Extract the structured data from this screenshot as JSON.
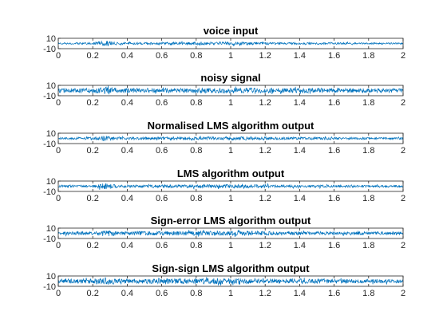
{
  "figure": {
    "background": "#ffffff",
    "axes_color": "#262626",
    "line_color": "#0072bd"
  },
  "chart_data": [
    {
      "type": "line",
      "title": "voice input",
      "xlim": [
        0,
        2
      ],
      "ylim": [
        -10,
        10
      ],
      "xticks": [
        "0",
        "0.2",
        "0.4",
        "0.6",
        "0.8",
        "1",
        "1.2",
        "1.4",
        "1.6",
        "1.8",
        "2"
      ],
      "yticks": [
        "-10",
        "10"
      ],
      "series": [
        {
          "x_range": [
            0,
            2
          ],
          "amplitude_envelope": [
            [
              0,
              1.5
            ],
            [
              0.2,
              2
            ],
            [
              0.28,
              6
            ],
            [
              0.35,
              2
            ],
            [
              0.6,
              2.5
            ],
            [
              0.9,
              3
            ],
            [
              1.1,
              3
            ],
            [
              1.3,
              2
            ],
            [
              1.6,
              2
            ],
            [
              1.8,
              1.5
            ],
            [
              2,
              1.5
            ]
          ]
        }
      ]
    },
    {
      "type": "line",
      "title": "noisy signal",
      "xlim": [
        0,
        2
      ],
      "ylim": [
        -10,
        10
      ],
      "xticks": [
        "0",
        "0.2",
        "0.4",
        "0.6",
        "0.8",
        "1",
        "1.2",
        "1.4",
        "1.6",
        "1.8",
        "2"
      ],
      "yticks": [
        "-10",
        "10"
      ],
      "series": [
        {
          "x_range": [
            0,
            2
          ],
          "amplitude_envelope": [
            [
              0,
              4
            ],
            [
              0.2,
              4.5
            ],
            [
              0.28,
              7
            ],
            [
              0.35,
              4.5
            ],
            [
              0.6,
              4.5
            ],
            [
              0.9,
              5
            ],
            [
              1.1,
              5
            ],
            [
              1.3,
              4.5
            ],
            [
              1.6,
              4.5
            ],
            [
              1.8,
              4
            ],
            [
              2,
              4
            ]
          ]
        }
      ]
    },
    {
      "type": "line",
      "title": "Normalised LMS algorithm output",
      "xlim": [
        0,
        2
      ],
      "ylim": [
        -10,
        10
      ],
      "xticks": [
        "0",
        "0.2",
        "0.4",
        "0.6",
        "0.8",
        "1",
        "1.2",
        "1.4",
        "1.6",
        "1.8",
        "2"
      ],
      "yticks": [
        "-10",
        "10"
      ],
      "series": [
        {
          "x_range": [
            0,
            2
          ],
          "amplitude_envelope": [
            [
              0,
              2
            ],
            [
              0.2,
              2.5
            ],
            [
              0.28,
              6
            ],
            [
              0.35,
              2.5
            ],
            [
              0.6,
              3
            ],
            [
              0.9,
              3.5
            ],
            [
              1.1,
              3.5
            ],
            [
              1.3,
              2.5
            ],
            [
              1.6,
              2.5
            ],
            [
              1.8,
              2
            ],
            [
              2,
              2
            ]
          ]
        }
      ]
    },
    {
      "type": "line",
      "title": "LMS algorithm output",
      "xlim": [
        0,
        2
      ],
      "ylim": [
        -10,
        10
      ],
      "xticks": [
        "0",
        "0.2",
        "0.4",
        "0.6",
        "0.8",
        "1",
        "1.2",
        "1.4",
        "1.6",
        "1.8",
        "2"
      ],
      "yticks": [
        "-10",
        "10"
      ],
      "series": [
        {
          "x_range": [
            0,
            2
          ],
          "amplitude_envelope": [
            [
              0,
              2
            ],
            [
              0.2,
              2.5
            ],
            [
              0.28,
              6
            ],
            [
              0.35,
              2.5
            ],
            [
              0.6,
              3
            ],
            [
              0.9,
              3.5
            ],
            [
              1.1,
              3.5
            ],
            [
              1.3,
              2.5
            ],
            [
              1.6,
              2.5
            ],
            [
              1.8,
              2
            ],
            [
              2,
              2
            ]
          ]
        }
      ]
    },
    {
      "type": "line",
      "title": "Sign-error LMS algorithm output",
      "xlim": [
        0,
        2
      ],
      "ylim": [
        -10,
        10
      ],
      "xticks": [
        "0",
        "0.2",
        "0.4",
        "0.6",
        "0.8",
        "1",
        "1.2",
        "1.4",
        "1.6",
        "1.8",
        "2"
      ],
      "yticks": [
        "-10",
        "10"
      ],
      "series": [
        {
          "x_range": [
            0,
            2
          ],
          "amplitude_envelope": [
            [
              0,
              3
            ],
            [
              0.2,
              3.5
            ],
            [
              0.28,
              6.5
            ],
            [
              0.35,
              3.5
            ],
            [
              0.6,
              4
            ],
            [
              0.9,
              4.5
            ],
            [
              1.1,
              4.5
            ],
            [
              1.3,
              3.5
            ],
            [
              1.6,
              3.5
            ],
            [
              1.8,
              3
            ],
            [
              2,
              3
            ]
          ]
        }
      ]
    },
    {
      "type": "line",
      "title": "Sign-sign LMS algorithm output",
      "xlim": [
        0,
        2
      ],
      "ylim": [
        -10,
        10
      ],
      "xticks": [
        "0",
        "0.2",
        "0.4",
        "0.6",
        "0.8",
        "1",
        "1.2",
        "1.4",
        "1.6",
        "1.8",
        "2"
      ],
      "yticks": [
        "-10",
        "10"
      ],
      "series": [
        {
          "x_range": [
            0,
            2
          ],
          "amplitude_envelope": [
            [
              0,
              4
            ],
            [
              0.2,
              4.5
            ],
            [
              0.28,
              7
            ],
            [
              0.35,
              4.5
            ],
            [
              0.6,
              5
            ],
            [
              0.9,
              5.5
            ],
            [
              1.1,
              5.5
            ],
            [
              1.3,
              4.5
            ],
            [
              1.6,
              4.5
            ],
            [
              1.8,
              4
            ],
            [
              2,
              4
            ]
          ]
        }
      ]
    }
  ]
}
